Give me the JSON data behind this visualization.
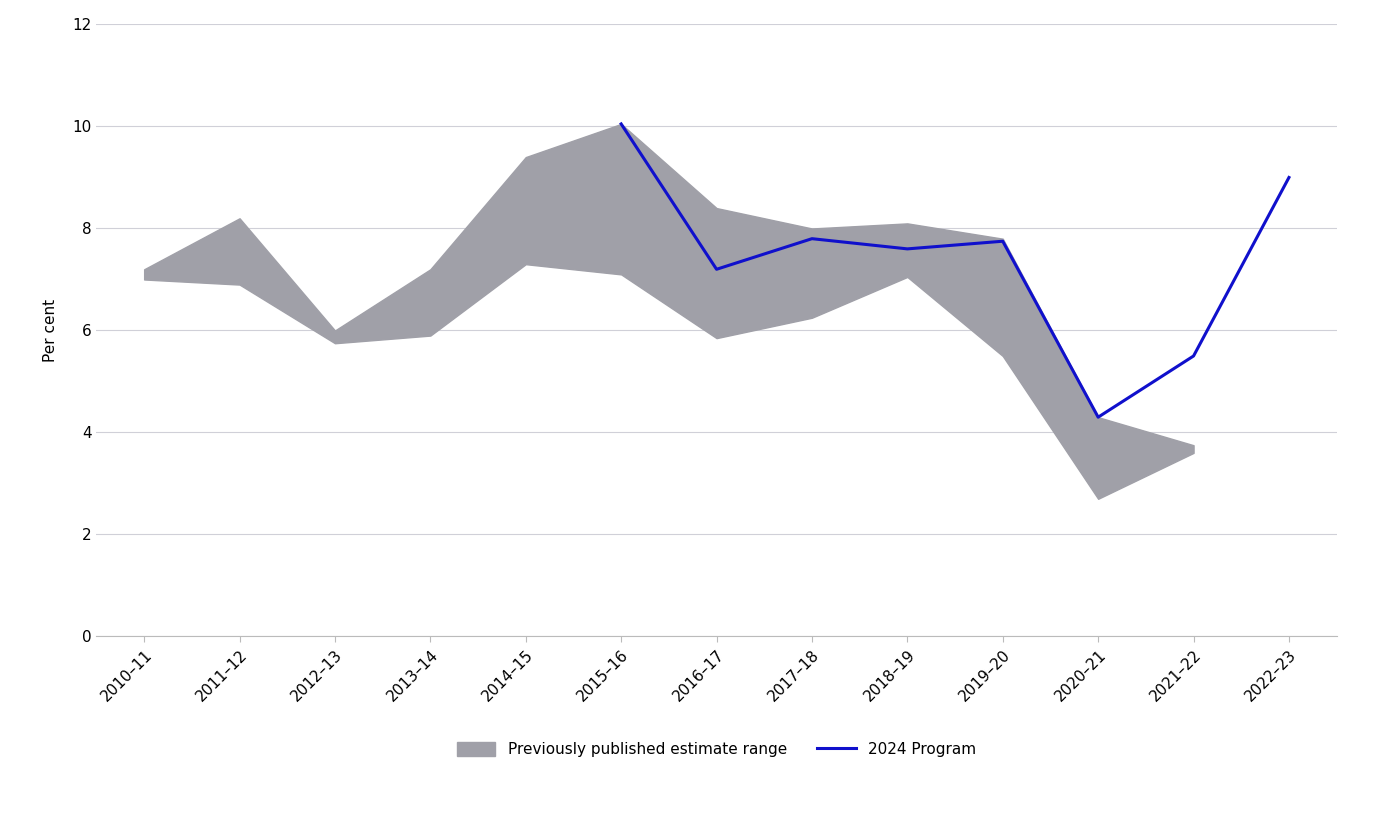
{
  "x_labels": [
    "2010–11",
    "2011–12",
    "2012–13",
    "2013–14",
    "2014–15",
    "2015–16",
    "2016–17",
    "2017–18",
    "2018–19",
    "2019–20",
    "2020–21",
    "2021–22",
    "2022–23"
  ],
  "x_indices": [
    0,
    1,
    2,
    3,
    4,
    5,
    6,
    7,
    8,
    9,
    10,
    11,
    12
  ],
  "program_2024": [
    null,
    null,
    null,
    null,
    null,
    10.05,
    7.2,
    7.8,
    7.6,
    7.75,
    4.3,
    5.5,
    9.0
  ],
  "range_upper": [
    7.2,
    8.2,
    6.0,
    7.2,
    9.4,
    10.05,
    8.4,
    8.0,
    8.1,
    7.8,
    4.3,
    3.75,
    null
  ],
  "range_lower": [
    7.0,
    6.9,
    5.75,
    5.9,
    7.3,
    7.1,
    5.85,
    6.25,
    7.05,
    5.5,
    2.7,
    3.6,
    null
  ],
  "shade_color": "#a0a0a8",
  "line_color": "#1010cc",
  "line_width": 2.2,
  "background_color": "#ffffff",
  "ylabel": "Per cent",
  "ylim": [
    0,
    12
  ],
  "yticks": [
    0,
    2,
    4,
    6,
    8,
    10,
    12
  ],
  "legend_label_shade": "Previously published estimate range",
  "legend_label_line": "2024 Program",
  "axis_fontsize": 11,
  "tick_fontsize": 11,
  "grid_color": "#d0d0d8",
  "grid_linewidth": 0.8
}
